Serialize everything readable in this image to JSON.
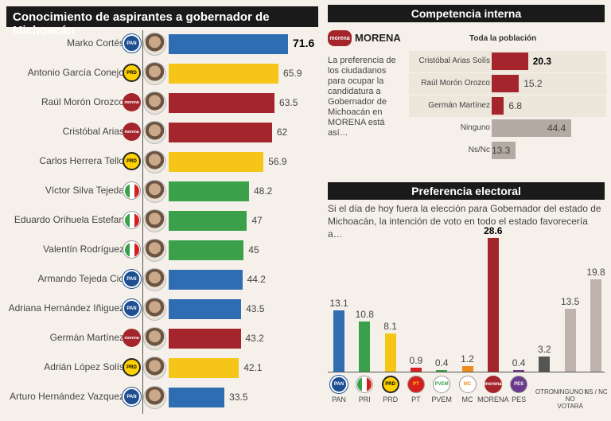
{
  "left_panel": {
    "title": "Conocimiento de aspirantes a gobernador de Michoacán",
    "rows": [
      {
        "name": "Marko Cortés",
        "party": "PAN",
        "value": 71.6,
        "value_label": "71.6",
        "bold": true
      },
      {
        "name": "Antonio García Conejo",
        "party": "PRD",
        "value": 65.9,
        "value_label": "65.9"
      },
      {
        "name": "Raúl Morón Orozco",
        "party": "MORENA",
        "value": 63.5,
        "value_label": "63.5"
      },
      {
        "name": "Cristóbal Arias",
        "party": "MORENA",
        "value": 62,
        "value_label": "62"
      },
      {
        "name": "Carlos Herrera Tello",
        "party": "PRD",
        "value": 56.9,
        "value_label": "56.9"
      },
      {
        "name": "Víctor Silva Tejeda",
        "party": "PRI",
        "value": 48.2,
        "value_label": "48.2"
      },
      {
        "name": "Eduardo Orihuela Estefan",
        "party": "PRI",
        "value": 47,
        "value_label": "47"
      },
      {
        "name": "Valentín Rodríguez",
        "party": "PRI",
        "value": 45,
        "value_label": "45"
      },
      {
        "name": "Armando Tejeda Cid",
        "party": "PAN",
        "value": 44.2,
        "value_label": "44.2"
      },
      {
        "name": "Adriana Hernández Iñiguez",
        "party": "PAN",
        "value": 43.5,
        "value_label": "43.5"
      },
      {
        "name": "Germán Martínez",
        "party": "MORENA",
        "value": 43.2,
        "value_label": "43.2"
      },
      {
        "name": "Adrián López Solís",
        "party": "PRD",
        "value": 42.1,
        "value_label": "42.1"
      },
      {
        "name": "Arturo Hernández Vazquez",
        "party": "PAN",
        "value": 33.5,
        "value_label": "33.5"
      }
    ]
  },
  "competencia": {
    "title": "Competencia interna",
    "party_logo_text": "morena",
    "party_label": "MORENA",
    "subtitle": "Toda la población",
    "description": "La preferencia de los ciudadanos para ocupar la candidatura a Gobernador de Michoacán en MORENA está así…",
    "rows": [
      {
        "name": "Cristóbal Arias Solís",
        "value": 20.3,
        "value_label": "20.3",
        "kind": "candidate",
        "bold": true
      },
      {
        "name": "Raúl Morón Orozco",
        "value": 15.2,
        "value_label": "15.2",
        "kind": "candidate"
      },
      {
        "name": "Germán Martínez",
        "value": 6.8,
        "value_label": "6.8",
        "kind": "candidate"
      },
      {
        "name": "Ninguno",
        "value": 44.4,
        "value_label": "44.4",
        "kind": "other"
      },
      {
        "name": "Ns/Nc",
        "value": 13.3,
        "value_label": "13.3",
        "kind": "other"
      }
    ]
  },
  "preferencia": {
    "title": "Preferencia electoral",
    "description": "Si el día de hoy fuera la elección para Gobernador del estado de Michoacán, la intención de voto en todo el estado favorecería a…",
    "bars": [
      {
        "label": "PAN",
        "value": 13.1,
        "value_label": "13.1",
        "color": "#2f6db3",
        "logo": "PAN"
      },
      {
        "label": "PRI",
        "value": 10.8,
        "value_label": "10.8",
        "color": "#3aa14a",
        "logo": "PRI"
      },
      {
        "label": "PRD",
        "value": 8.1,
        "value_label": "8.1",
        "color": "#f5c518",
        "logo": "PRD"
      },
      {
        "label": "PT",
        "value": 0.9,
        "value_label": "0.9",
        "color": "#d62020",
        "logo": "PT"
      },
      {
        "label": "PVEM",
        "value": 0.4,
        "value_label": "0.4",
        "color": "#3aa14a",
        "logo": "PVEM"
      },
      {
        "label": "MC",
        "value": 1.2,
        "value_label": "1.2",
        "color": "#f08a1c",
        "logo": "MC"
      },
      {
        "label": "MORENA",
        "value": 28.6,
        "value_label": "28.6",
        "color": "#a4262c",
        "logo": "morena",
        "bold": true
      },
      {
        "label": "PES",
        "value": 0.4,
        "value_label": "0.4",
        "color": "#6a3a8c",
        "logo": "PES"
      },
      {
        "label": "OTRO",
        "value": 3.2,
        "value_label": "3.2",
        "color": "#555555",
        "logo": ""
      },
      {
        "label": "NINGUNO / NO VOTARÁ",
        "value": 13.5,
        "value_label": "13.5",
        "color": "#bdb3ab",
        "logo": ""
      },
      {
        "label": "NS / NC",
        "value": 19.8,
        "value_label": "19.8",
        "color": "#bdb3ab",
        "logo": ""
      }
    ]
  },
  "colors": {
    "PAN": "#2f6db3",
    "PRD": "#f5c518",
    "MORENA": "#a4262c",
    "PRI": "#3aa14a",
    "other": "#b3aaa2"
  },
  "chart_data": [
    {
      "type": "bar",
      "title": "Conocimiento de aspirantes a gobernador de Michoacán",
      "orientation": "horizontal",
      "categories": [
        "Marko Cortés",
        "Antonio García Conejo",
        "Raúl Morón Orozco",
        "Cristóbal Arias",
        "Carlos Herrera Tello",
        "Víctor Silva Tejeda",
        "Eduardo Orihuela Estefan",
        "Valentín Rodríguez",
        "Armando Tejeda Cid",
        "Adriana Hernández Iñiguez",
        "Germán Martínez",
        "Adrián López Solís",
        "Arturo Hernández Vazquez"
      ],
      "values": [
        71.6,
        65.9,
        63.5,
        62,
        56.9,
        48.2,
        47,
        45,
        44.2,
        43.5,
        43.2,
        42.1,
        33.5
      ]
    },
    {
      "type": "bar",
      "title": "Competencia interna",
      "orientation": "horizontal",
      "categories": [
        "Cristóbal Arias Solís",
        "Raúl Morón Orozco",
        "Germán Martínez",
        "Ninguno",
        "Ns/Nc"
      ],
      "values": [
        20.3,
        15.2,
        6.8,
        44.4,
        13.3
      ]
    },
    {
      "type": "bar",
      "title": "Preferencia electoral",
      "categories": [
        "PAN",
        "PRI",
        "PRD",
        "PT",
        "PVEM",
        "MC",
        "MORENA",
        "PES",
        "OTRO",
        "NINGUNO / NO VOTARÁ",
        "NS / NC"
      ],
      "values": [
        13.1,
        10.8,
        8.1,
        0.9,
        0.4,
        1.2,
        28.6,
        0.4,
        3.2,
        13.5,
        19.8
      ]
    }
  ]
}
